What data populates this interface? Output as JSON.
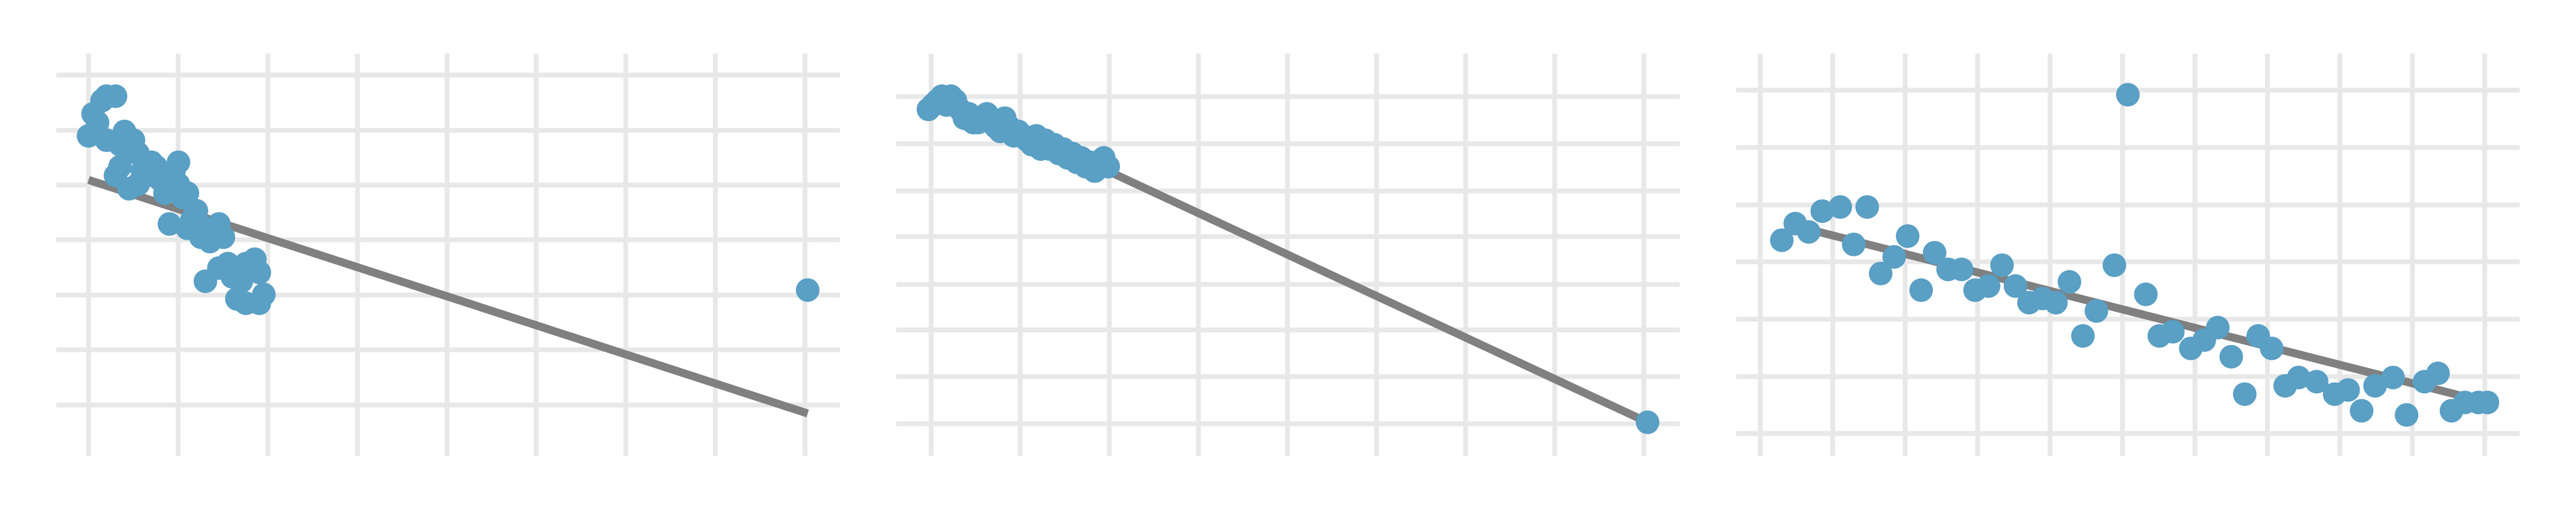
{
  "colors": {
    "background": "#ffffff",
    "grid": "#e8e8e8",
    "point": "#5a9fc4",
    "fit_line": "#808080"
  },
  "chart_data": [
    {
      "type": "scatter",
      "title": "",
      "xlabel": "",
      "ylabel": "",
      "grid": true,
      "legend": "none",
      "xlim": [
        -0.3,
        8.3
      ],
      "ylim": [
        0,
        8.4
      ],
      "fit_line": {
        "x": [
          0,
          8
        ],
        "y": [
          5.9,
          0.6
        ]
      },
      "points": [
        {
          "x": 0.0,
          "y": 6.9
        },
        {
          "x": 0.05,
          "y": 7.4
        },
        {
          "x": 0.1,
          "y": 7.2
        },
        {
          "x": 0.15,
          "y": 7.7
        },
        {
          "x": 0.2,
          "y": 7.8
        },
        {
          "x": 0.3,
          "y": 7.8
        },
        {
          "x": 0.2,
          "y": 6.8
        },
        {
          "x": 0.35,
          "y": 6.7
        },
        {
          "x": 0.4,
          "y": 7.0
        },
        {
          "x": 0.45,
          "y": 6.6
        },
        {
          "x": 0.5,
          "y": 6.8
        },
        {
          "x": 0.55,
          "y": 6.5
        },
        {
          "x": 0.3,
          "y": 6.0
        },
        {
          "x": 0.35,
          "y": 6.2
        },
        {
          "x": 0.45,
          "y": 5.7
        },
        {
          "x": 0.55,
          "y": 5.8
        },
        {
          "x": 0.6,
          "y": 6.1
        },
        {
          "x": 0.65,
          "y": 6.0
        },
        {
          "x": 0.7,
          "y": 6.3
        },
        {
          "x": 0.75,
          "y": 6.2
        },
        {
          "x": 0.8,
          "y": 5.9
        },
        {
          "x": 0.85,
          "y": 5.6
        },
        {
          "x": 0.9,
          "y": 5.7
        },
        {
          "x": 0.95,
          "y": 6.1
        },
        {
          "x": 1.0,
          "y": 5.8
        },
        {
          "x": 1.0,
          "y": 6.3
        },
        {
          "x": 1.05,
          "y": 5.5
        },
        {
          "x": 1.1,
          "y": 5.6
        },
        {
          "x": 0.9,
          "y": 4.9
        },
        {
          "x": 1.1,
          "y": 4.8
        },
        {
          "x": 1.15,
          "y": 5.0
        },
        {
          "x": 1.2,
          "y": 5.2
        },
        {
          "x": 1.25,
          "y": 4.6
        },
        {
          "x": 1.3,
          "y": 4.8
        },
        {
          "x": 1.35,
          "y": 4.5
        },
        {
          "x": 1.4,
          "y": 4.7
        },
        {
          "x": 1.45,
          "y": 4.9
        },
        {
          "x": 1.5,
          "y": 4.6
        },
        {
          "x": 1.3,
          "y": 3.6
        },
        {
          "x": 1.45,
          "y": 3.9
        },
        {
          "x": 1.55,
          "y": 4.0
        },
        {
          "x": 1.6,
          "y": 3.7
        },
        {
          "x": 1.65,
          "y": 3.8
        },
        {
          "x": 1.7,
          "y": 3.6
        },
        {
          "x": 1.75,
          "y": 4.0
        },
        {
          "x": 1.8,
          "y": 3.9
        },
        {
          "x": 1.85,
          "y": 4.1
        },
        {
          "x": 1.9,
          "y": 3.8
        },
        {
          "x": 1.65,
          "y": 3.2
        },
        {
          "x": 1.75,
          "y": 3.1
        },
        {
          "x": 1.9,
          "y": 3.1
        },
        {
          "x": 1.95,
          "y": 3.3
        },
        {
          "x": 8.0,
          "y": 3.4
        }
      ]
    },
    {
      "type": "scatter",
      "title": "",
      "xlabel": "",
      "ylabel": "",
      "grid": true,
      "legend": "none",
      "xlim": [
        -0.3,
        8.3
      ],
      "ylim": [
        0,
        8.4
      ],
      "fit_line": {
        "x": [
          2.0,
          8.0
        ],
        "y": [
          6.1,
          0.4
        ]
      },
      "points": [
        {
          "x": 0.0,
          "y": 7.5
        },
        {
          "x": 0.05,
          "y": 7.6
        },
        {
          "x": 0.1,
          "y": 7.7
        },
        {
          "x": 0.15,
          "y": 7.8
        },
        {
          "x": 0.2,
          "y": 7.6
        },
        {
          "x": 0.25,
          "y": 7.8
        },
        {
          "x": 0.3,
          "y": 7.7
        },
        {
          "x": 0.35,
          "y": 7.5
        },
        {
          "x": 0.4,
          "y": 7.3
        },
        {
          "x": 0.45,
          "y": 7.4
        },
        {
          "x": 0.5,
          "y": 7.2
        },
        {
          "x": 0.55,
          "y": 7.2
        },
        {
          "x": 0.6,
          "y": 7.3
        },
        {
          "x": 0.65,
          "y": 7.4
        },
        {
          "x": 0.7,
          "y": 7.2
        },
        {
          "x": 0.75,
          "y": 7.1
        },
        {
          "x": 0.8,
          "y": 7.0
        },
        {
          "x": 0.85,
          "y": 7.3
        },
        {
          "x": 0.9,
          "y": 7.1
        },
        {
          "x": 0.95,
          "y": 6.9
        },
        {
          "x": 1.0,
          "y": 7.0
        },
        {
          "x": 1.05,
          "y": 6.9
        },
        {
          "x": 1.1,
          "y": 6.8
        },
        {
          "x": 1.15,
          "y": 6.7
        },
        {
          "x": 1.2,
          "y": 6.9
        },
        {
          "x": 1.25,
          "y": 6.6
        },
        {
          "x": 1.3,
          "y": 6.8
        },
        {
          "x": 1.35,
          "y": 6.6
        },
        {
          "x": 1.4,
          "y": 6.7
        },
        {
          "x": 1.45,
          "y": 6.5
        },
        {
          "x": 1.5,
          "y": 6.6
        },
        {
          "x": 1.55,
          "y": 6.4
        },
        {
          "x": 1.6,
          "y": 6.5
        },
        {
          "x": 1.65,
          "y": 6.3
        },
        {
          "x": 1.7,
          "y": 6.4
        },
        {
          "x": 1.75,
          "y": 6.2
        },
        {
          "x": 1.8,
          "y": 6.3
        },
        {
          "x": 1.85,
          "y": 6.1
        },
        {
          "x": 1.9,
          "y": 6.3
        },
        {
          "x": 1.95,
          "y": 6.4
        },
        {
          "x": 2.0,
          "y": 6.2
        },
        {
          "x": 8.0,
          "y": 0.4
        }
      ]
    },
    {
      "type": "scatter",
      "title": "",
      "xlabel": "",
      "ylabel": "",
      "grid": true,
      "legend": "none",
      "xlim": [
        -0.3,
        8.3
      ],
      "ylim": [
        -0.5,
        8.4
      ],
      "fit_line": {
        "x": [
          0.2,
          8.0
        ],
        "y": [
          4.7,
          0.4
        ]
      },
      "points": [
        {
          "x": 0.15,
          "y": 4.3
        },
        {
          "x": 0.3,
          "y": 4.7
        },
        {
          "x": 0.45,
          "y": 4.5
        },
        {
          "x": 0.6,
          "y": 5.0
        },
        {
          "x": 0.8,
          "y": 5.1
        },
        {
          "x": 0.95,
          "y": 4.2
        },
        {
          "x": 1.1,
          "y": 5.1
        },
        {
          "x": 1.25,
          "y": 3.5
        },
        {
          "x": 1.4,
          "y": 3.9
        },
        {
          "x": 1.55,
          "y": 4.4
        },
        {
          "x": 1.7,
          "y": 3.1
        },
        {
          "x": 1.85,
          "y": 4.0
        },
        {
          "x": 2.0,
          "y": 3.6
        },
        {
          "x": 2.15,
          "y": 3.6
        },
        {
          "x": 2.3,
          "y": 3.1
        },
        {
          "x": 2.45,
          "y": 3.2
        },
        {
          "x": 2.6,
          "y": 3.7
        },
        {
          "x": 2.75,
          "y": 3.2
        },
        {
          "x": 2.9,
          "y": 2.8
        },
        {
          "x": 3.05,
          "y": 2.9
        },
        {
          "x": 3.2,
          "y": 2.8
        },
        {
          "x": 3.35,
          "y": 3.3
        },
        {
          "x": 3.5,
          "y": 2.0
        },
        {
          "x": 3.65,
          "y": 2.6
        },
        {
          "x": 3.85,
          "y": 3.7
        },
        {
          "x": 4.0,
          "y": 7.8
        },
        {
          "x": 4.2,
          "y": 3.0
        },
        {
          "x": 4.35,
          "y": 2.0
        },
        {
          "x": 4.5,
          "y": 2.1
        },
        {
          "x": 4.7,
          "y": 1.7
        },
        {
          "x": 4.85,
          "y": 1.9
        },
        {
          "x": 5.0,
          "y": 2.2
        },
        {
          "x": 5.15,
          "y": 1.5
        },
        {
          "x": 5.3,
          "y": 0.6
        },
        {
          "x": 5.45,
          "y": 2.0
        },
        {
          "x": 5.6,
          "y": 1.7
        },
        {
          "x": 5.75,
          "y": 0.8
        },
        {
          "x": 5.9,
          "y": 1.0
        },
        {
          "x": 6.1,
          "y": 0.9
        },
        {
          "x": 6.3,
          "y": 0.6
        },
        {
          "x": 6.45,
          "y": 0.7
        },
        {
          "x": 6.6,
          "y": 0.2
        },
        {
          "x": 6.75,
          "y": 0.8
        },
        {
          "x": 6.95,
          "y": 1.0
        },
        {
          "x": 7.1,
          "y": 0.1
        },
        {
          "x": 7.3,
          "y": 0.9
        },
        {
          "x": 7.45,
          "y": 1.1
        },
        {
          "x": 7.6,
          "y": 0.2
        },
        {
          "x": 7.75,
          "y": 0.4
        },
        {
          "x": 7.9,
          "y": 0.4
        },
        {
          "x": 8.0,
          "y": 0.4
        }
      ]
    }
  ]
}
